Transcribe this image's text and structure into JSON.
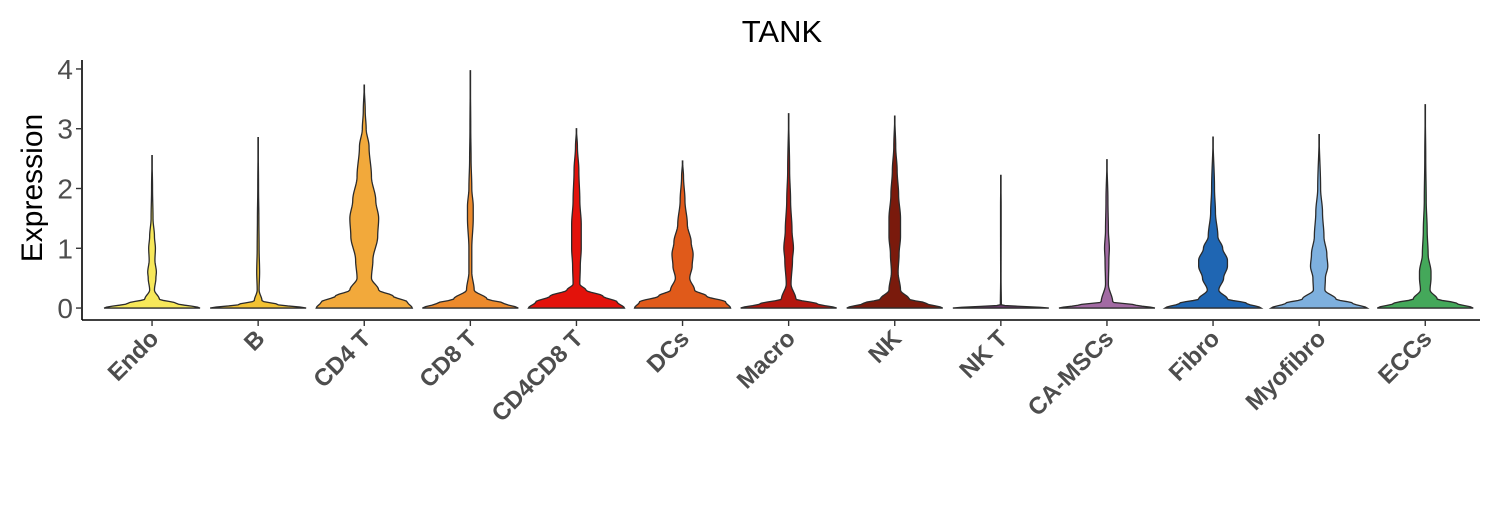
{
  "chart_data": {
    "type": "violin",
    "title": "TANK",
    "ylabel": "Expression",
    "xlabel": "",
    "ylim": [
      -0.2,
      4.15
    ],
    "yticks": [
      "0",
      "1",
      "2",
      "3",
      "4"
    ],
    "grid": false,
    "legend": "none",
    "categories": [
      "Endo",
      "B",
      "CD4 T",
      "CD8 T",
      "CD4CD8 T",
      "DCs",
      "Macro",
      "NK",
      "NK T",
      "CA-MSCs",
      "Fibro",
      "Myofibro",
      "ECCs"
    ],
    "colors": [
      "#f7e85a",
      "#f2c233",
      "#f2a93b",
      "#ec8a2c",
      "#e3120b",
      "#e05a1a",
      "#b3170f",
      "#7a1a0c",
      "#6a3b6b",
      "#a26aa3",
      "#1f66b3",
      "#7eb0de",
      "#44a85a"
    ],
    "max_values": [
      2.55,
      2.85,
      3.73,
      3.97,
      3.0,
      2.46,
      3.25,
      3.21,
      2.22,
      2.48,
      2.86,
      2.9,
      3.4
    ],
    "density_profiles": [
      [
        [
          0,
          1.0
        ],
        [
          0.08,
          0.5
        ],
        [
          0.15,
          0.15
        ],
        [
          0.3,
          0.05
        ],
        [
          0.5,
          0.08
        ],
        [
          0.6,
          0.09
        ],
        [
          0.8,
          0.06
        ],
        [
          1.0,
          0.07
        ],
        [
          1.2,
          0.05
        ],
        [
          1.5,
          0.02
        ],
        [
          2.0,
          0.01
        ],
        [
          2.55,
          0.0
        ]
      ],
      [
        [
          0,
          1.0
        ],
        [
          0.06,
          0.4
        ],
        [
          0.12,
          0.08
        ],
        [
          0.3,
          0.02
        ],
        [
          0.6,
          0.03
        ],
        [
          1.0,
          0.02
        ],
        [
          1.5,
          0.015
        ],
        [
          2.0,
          0.008
        ],
        [
          2.85,
          0.0
        ]
      ],
      [
        [
          0,
          1.0
        ],
        [
          0.1,
          0.9
        ],
        [
          0.2,
          0.6
        ],
        [
          0.3,
          0.3
        ],
        [
          0.5,
          0.15
        ],
        [
          0.8,
          0.18
        ],
        [
          1.2,
          0.28
        ],
        [
          1.5,
          0.3
        ],
        [
          1.8,
          0.24
        ],
        [
          2.2,
          0.15
        ],
        [
          2.7,
          0.1
        ],
        [
          3.0,
          0.04
        ],
        [
          3.3,
          0.02
        ],
        [
          3.73,
          0.0
        ]
      ],
      [
        [
          0,
          1.0
        ],
        [
          0.08,
          0.7
        ],
        [
          0.15,
          0.35
        ],
        [
          0.3,
          0.08
        ],
        [
          0.6,
          0.03
        ],
        [
          1.0,
          0.03
        ],
        [
          1.5,
          0.06
        ],
        [
          1.7,
          0.06
        ],
        [
          2.0,
          0.03
        ],
        [
          2.5,
          0.015
        ],
        [
          3.0,
          0.008
        ],
        [
          3.97,
          0.0
        ]
      ],
      [
        [
          0,
          1.0
        ],
        [
          0.1,
          0.85
        ],
        [
          0.2,
          0.55
        ],
        [
          0.3,
          0.2
        ],
        [
          0.4,
          0.07
        ],
        [
          0.7,
          0.08
        ],
        [
          1.0,
          0.1
        ],
        [
          1.4,
          0.1
        ],
        [
          1.8,
          0.07
        ],
        [
          2.3,
          0.05
        ],
        [
          2.7,
          0.02
        ],
        [
          3.0,
          0.0
        ]
      ],
      [
        [
          0,
          1.0
        ],
        [
          0.1,
          0.9
        ],
        [
          0.2,
          0.5
        ],
        [
          0.3,
          0.25
        ],
        [
          0.5,
          0.15
        ],
        [
          0.7,
          0.2
        ],
        [
          0.9,
          0.22
        ],
        [
          1.1,
          0.18
        ],
        [
          1.4,
          0.1
        ],
        [
          1.8,
          0.05
        ],
        [
          2.2,
          0.02
        ],
        [
          2.46,
          0.0
        ]
      ],
      [
        [
          0,
          1.0
        ],
        [
          0.07,
          0.6
        ],
        [
          0.15,
          0.15
        ],
        [
          0.4,
          0.05
        ],
        [
          0.8,
          0.08
        ],
        [
          1.0,
          0.1
        ],
        [
          1.3,
          0.07
        ],
        [
          1.8,
          0.04
        ],
        [
          2.3,
          0.02
        ],
        [
          3.25,
          0.0
        ]
      ],
      [
        [
          0,
          1.0
        ],
        [
          0.08,
          0.65
        ],
        [
          0.15,
          0.3
        ],
        [
          0.3,
          0.12
        ],
        [
          0.6,
          0.07
        ],
        [
          0.9,
          0.09
        ],
        [
          1.2,
          0.12
        ],
        [
          1.5,
          0.12
        ],
        [
          1.9,
          0.08
        ],
        [
          2.3,
          0.05
        ],
        [
          2.7,
          0.02
        ],
        [
          3.21,
          0.0
        ]
      ],
      [
        [
          0,
          1.0
        ],
        [
          0.05,
          0.01
        ],
        [
          0.5,
          0.004
        ],
        [
          1.4,
          0.006
        ],
        [
          1.7,
          0.006
        ],
        [
          2.22,
          0.0
        ]
      ],
      [
        [
          0,
          1.0
        ],
        [
          0.05,
          0.6
        ],
        [
          0.1,
          0.12
        ],
        [
          0.4,
          0.03
        ],
        [
          0.8,
          0.04
        ],
        [
          1.0,
          0.05
        ],
        [
          1.3,
          0.03
        ],
        [
          1.8,
          0.02
        ],
        [
          2.48,
          0.0
        ]
      ],
      [
        [
          0,
          1.0
        ],
        [
          0.08,
          0.7
        ],
        [
          0.15,
          0.3
        ],
        [
          0.3,
          0.12
        ],
        [
          0.5,
          0.22
        ],
        [
          0.7,
          0.3
        ],
        [
          0.8,
          0.3
        ],
        [
          1.0,
          0.2
        ],
        [
          1.2,
          0.1
        ],
        [
          1.6,
          0.05
        ],
        [
          2.0,
          0.03
        ],
        [
          2.86,
          0.0
        ]
      ],
      [
        [
          0,
          1.0
        ],
        [
          0.08,
          0.7
        ],
        [
          0.15,
          0.35
        ],
        [
          0.3,
          0.12
        ],
        [
          0.5,
          0.13
        ],
        [
          0.7,
          0.18
        ],
        [
          0.9,
          0.16
        ],
        [
          1.2,
          0.1
        ],
        [
          1.6,
          0.07
        ],
        [
          2.0,
          0.03
        ],
        [
          2.9,
          0.0
        ]
      ],
      [
        [
          0,
          1.0
        ],
        [
          0.08,
          0.65
        ],
        [
          0.15,
          0.25
        ],
        [
          0.3,
          0.1
        ],
        [
          0.5,
          0.12
        ],
        [
          0.6,
          0.12
        ],
        [
          0.9,
          0.06
        ],
        [
          1.3,
          0.04
        ],
        [
          1.8,
          0.02
        ],
        [
          2.5,
          0.01
        ],
        [
          3.4,
          0.0
        ]
      ]
    ]
  }
}
